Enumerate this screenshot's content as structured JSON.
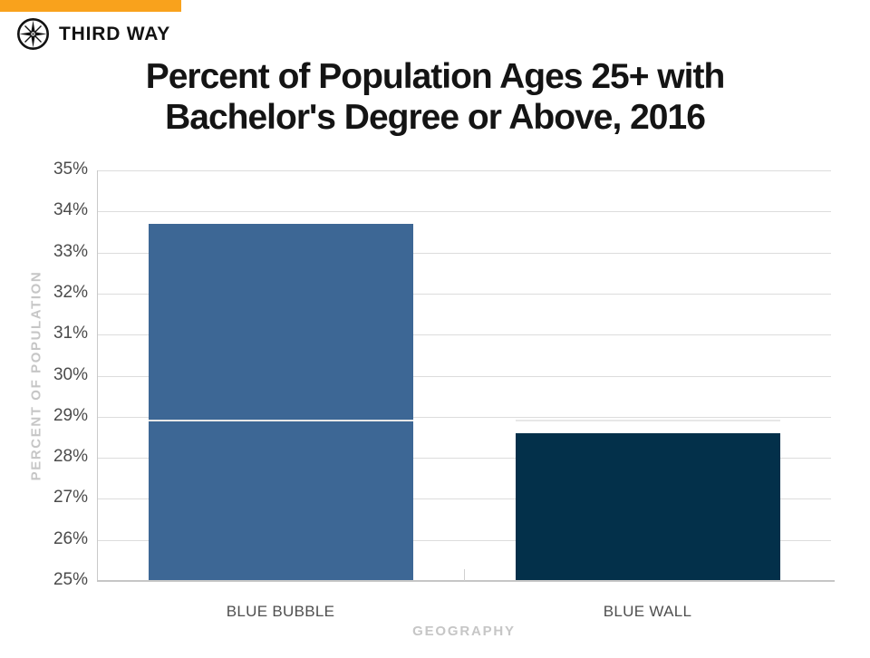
{
  "brand": {
    "name": "THIRD WAY",
    "logo_icon": "compass-icon",
    "accent_color": "#F9A21C"
  },
  "chart_data": {
    "type": "bar",
    "title": "Percent of Population Ages 25+ with Bachelor's Degree or Above, 2016",
    "title_lines": [
      "Percent of Population Ages 25+ with",
      "Bachelor's Degree or Above, 2016"
    ],
    "xlabel": "GEOGRAPHY",
    "ylabel": "PERCENT OF POPULATION",
    "categories": [
      "BLUE BUBBLE",
      "BLUE WALL"
    ],
    "values": [
      33.7,
      28.6
    ],
    "bar_colors": [
      "#3D6795",
      "#03304A"
    ],
    "ylim": [
      25,
      35
    ],
    "ytick_step": 1,
    "ytick_labels": [
      "25%",
      "26%",
      "27%",
      "28%",
      "29%",
      "30%",
      "31%",
      "32%",
      "33%",
      "34%",
      "35%"
    ],
    "grid": true,
    "legend": false
  },
  "colors": {
    "gridline": "#DCDCDC",
    "axis_line": "#C6C6C6",
    "tick_text": "#4B4B4B",
    "axis_title_text": "#C6C6C6",
    "category_text": "#4F4F4F",
    "title_text": "#141414"
  }
}
